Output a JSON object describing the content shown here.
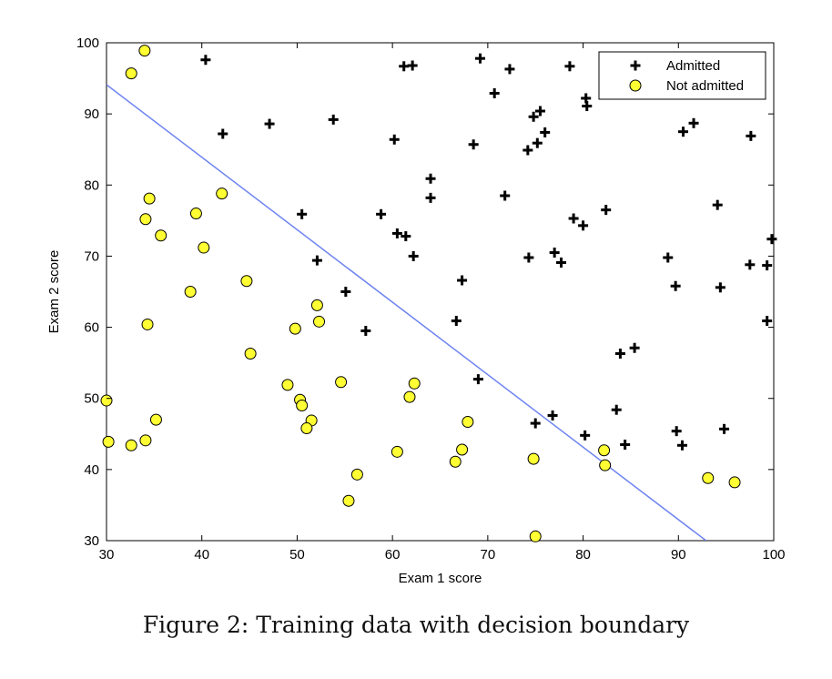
{
  "caption": "Figure 2: Training data with decision boundary",
  "chart_data": {
    "type": "scatter",
    "xlabel": "Exam 1 score",
    "ylabel": "Exam 2 score",
    "xlim": [
      30,
      100
    ],
    "ylim": [
      30,
      100
    ],
    "xticks": [
      30,
      40,
      50,
      60,
      70,
      80,
      90,
      100
    ],
    "yticks": [
      30,
      40,
      50,
      60,
      70,
      80,
      90,
      100
    ],
    "grid": false,
    "legend_position": "top-right",
    "series": [
      {
        "name": "Admitted",
        "marker": "plus",
        "color": "#000000",
        "points": [
          [
            40.4,
            97.6
          ],
          [
            42.2,
            87.2
          ],
          [
            47.1,
            88.6
          ],
          [
            53.8,
            89.2
          ],
          [
            61.2,
            96.7
          ],
          [
            62.1,
            96.8
          ],
          [
            69.2,
            97.8
          ],
          [
            70.7,
            92.9
          ],
          [
            72.3,
            96.3
          ],
          [
            78.6,
            96.7
          ],
          [
            80.3,
            92.2
          ],
          [
            80.4,
            91.1
          ],
          [
            60.2,
            86.4
          ],
          [
            68.5,
            85.7
          ],
          [
            74.2,
            84.9
          ],
          [
            74.8,
            89.6
          ],
          [
            75.2,
            85.9
          ],
          [
            75.5,
            90.4
          ],
          [
            76.0,
            87.4
          ],
          [
            90.5,
            87.5
          ],
          [
            91.6,
            88.7
          ],
          [
            97.6,
            86.9
          ],
          [
            64.0,
            80.9
          ],
          [
            64.0,
            78.2
          ],
          [
            71.8,
            78.5
          ],
          [
            58.8,
            75.9
          ],
          [
            50.5,
            75.9
          ],
          [
            79.0,
            75.3
          ],
          [
            80.0,
            74.3
          ],
          [
            82.4,
            76.5
          ],
          [
            94.1,
            77.2
          ],
          [
            60.5,
            73.2
          ],
          [
            61.4,
            72.8
          ],
          [
            62.2,
            70.0
          ],
          [
            52.1,
            69.4
          ],
          [
            74.3,
            69.8
          ],
          [
            77.0,
            70.5
          ],
          [
            77.7,
            69.1
          ],
          [
            88.9,
            69.8
          ],
          [
            97.5,
            68.8
          ],
          [
            99.3,
            68.7
          ],
          [
            99.8,
            72.4
          ],
          [
            67.3,
            66.6
          ],
          [
            55.1,
            65.0
          ],
          [
            89.7,
            65.8
          ],
          [
            94.4,
            65.6
          ],
          [
            66.7,
            60.9
          ],
          [
            57.2,
            59.5
          ],
          [
            99.3,
            60.9
          ],
          [
            83.9,
            56.3
          ],
          [
            85.4,
            57.1
          ],
          [
            69.0,
            52.7
          ],
          [
            75.0,
            46.5
          ],
          [
            76.8,
            47.6
          ],
          [
            83.5,
            48.4
          ],
          [
            89.8,
            45.4
          ],
          [
            94.8,
            45.7
          ],
          [
            80.2,
            44.8
          ],
          [
            84.4,
            43.5
          ],
          [
            90.4,
            43.4
          ]
        ]
      },
      {
        "name": "Not admitted",
        "marker": "circle",
        "color": "#ffff33",
        "points": [
          [
            34.0,
            98.9
          ],
          [
            32.6,
            95.7
          ],
          [
            42.1,
            78.8
          ],
          [
            34.5,
            78.1
          ],
          [
            39.4,
            76.0
          ],
          [
            34.1,
            75.2
          ],
          [
            35.7,
            72.9
          ],
          [
            40.2,
            71.2
          ],
          [
            44.7,
            66.5
          ],
          [
            38.8,
            65.0
          ],
          [
            34.3,
            60.4
          ],
          [
            52.1,
            63.1
          ],
          [
            52.3,
            60.8
          ],
          [
            49.8,
            59.8
          ],
          [
            45.1,
            56.3
          ],
          [
            49.0,
            51.9
          ],
          [
            54.6,
            52.3
          ],
          [
            62.3,
            52.1
          ],
          [
            61.8,
            50.2
          ],
          [
            50.3,
            49.8
          ],
          [
            50.5,
            49.0
          ],
          [
            51.5,
            46.9
          ],
          [
            51.0,
            45.8
          ],
          [
            35.2,
            47.0
          ],
          [
            30.0,
            49.7
          ],
          [
            67.9,
            46.7
          ],
          [
            30.2,
            43.9
          ],
          [
            32.6,
            43.4
          ],
          [
            34.1,
            44.1
          ],
          [
            60.5,
            42.5
          ],
          [
            67.3,
            42.8
          ],
          [
            66.6,
            41.1
          ],
          [
            74.8,
            41.5
          ],
          [
            82.2,
            42.7
          ],
          [
            82.3,
            40.6
          ],
          [
            56.3,
            39.3
          ],
          [
            55.4,
            35.6
          ],
          [
            93.1,
            38.8
          ],
          [
            95.9,
            38.2
          ],
          [
            75.0,
            30.6
          ]
        ]
      }
    ],
    "decision_boundary": {
      "color": "#6e84f0",
      "points": [
        [
          30,
          94.1
        ],
        [
          92.9,
          30
        ]
      ]
    }
  }
}
